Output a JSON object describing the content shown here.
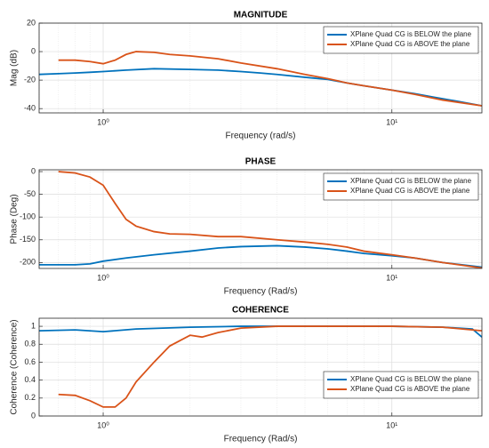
{
  "chart_data": [
    {
      "type": "line",
      "title": "MAGNITUDE",
      "xlabel": "Frequency (rad/s)",
      "ylabel": "Mag (dB)",
      "xscale": "log",
      "xlim": [
        0.6,
        20.5
      ],
      "xticks": [
        {
          "value": 1,
          "label": "10⁰"
        },
        {
          "value": 10,
          "label": "10¹"
        }
      ],
      "xminorticks": [
        0.6,
        0.7,
        0.8,
        0.9,
        2,
        3,
        4,
        5,
        6,
        7,
        8,
        9,
        20
      ],
      "ylim": [
        -43,
        20
      ],
      "yticks": [
        20,
        0,
        -20,
        -40
      ],
      "grid": true,
      "legend": "northeast",
      "series": [
        {
          "name": "XPlane Quad CG is BELOW the plane",
          "color": "#0072BD",
          "x": [
            0.6,
            0.7,
            0.8,
            0.9,
            1.0,
            1.2,
            1.5,
            2,
            2.5,
            3,
            3.5,
            4,
            5,
            6,
            7,
            8,
            10,
            12,
            14,
            17,
            20.5
          ],
          "values": [
            -16,
            -15.5,
            -15,
            -14.5,
            -14,
            -13,
            -12,
            -12.5,
            -13,
            -14,
            -15,
            -16,
            -18,
            -19.5,
            -22,
            -24,
            -27,
            -29.5,
            -32,
            -35,
            -38
          ]
        },
        {
          "name": "XPlane Quad CG is ABOVE the plane",
          "color": "#D95319",
          "x": [
            0.7,
            0.8,
            0.9,
            1.0,
            1.1,
            1.2,
            1.3,
            1.5,
            1.7,
            2,
            2.5,
            3,
            4,
            5,
            6,
            7,
            8,
            10,
            12,
            15,
            20.5
          ],
          "values": [
            -6,
            -6,
            -7,
            -8.5,
            -6,
            -2,
            0,
            -0.5,
            -2,
            -3,
            -5,
            -8,
            -12,
            -16,
            -19,
            -22,
            -24,
            -27,
            -30,
            -34,
            -38
          ]
        }
      ]
    },
    {
      "type": "line",
      "title": "PHASE",
      "xlabel": "Frequency (Rad/s)",
      "ylabel": "Phase (Deg)",
      "xscale": "log",
      "xlim": [
        0.6,
        20.5
      ],
      "xticks": [
        {
          "value": 1,
          "label": "10⁰"
        },
        {
          "value": 10,
          "label": "10¹"
        }
      ],
      "xminorticks": [
        0.6,
        0.7,
        0.8,
        0.9,
        2,
        3,
        4,
        5,
        6,
        7,
        8,
        9,
        20
      ],
      "ylim": [
        -213,
        4
      ],
      "yticks": [
        0,
        -50,
        -100,
        -150,
        -200
      ],
      "grid": true,
      "legend": "northeast",
      "series": [
        {
          "name": "XPlane Quad CG is BELOW the plane",
          "color": "#0072BD",
          "x": [
            0.6,
            0.7,
            0.8,
            0.9,
            1.0,
            1.2,
            1.5,
            2,
            2.5,
            3,
            4,
            5,
            6,
            7,
            8,
            10,
            12,
            15,
            20.5
          ],
          "values": [
            -205,
            -205,
            -205,
            -203,
            -197,
            -190,
            -183,
            -175,
            -168,
            -165,
            -163,
            -166,
            -170,
            -175,
            -180,
            -185,
            -190,
            -200,
            -210
          ]
        },
        {
          "name": "XPlane Quad CG is ABOVE the plane",
          "color": "#D95319",
          "x": [
            0.7,
            0.8,
            0.9,
            1.0,
            1.1,
            1.2,
            1.3,
            1.5,
            1.7,
            2,
            2.5,
            3,
            4,
            5,
            6,
            7,
            8,
            10,
            12,
            15,
            20.5
          ],
          "values": [
            0,
            -3,
            -12,
            -30,
            -70,
            -105,
            -120,
            -132,
            -137,
            -138,
            -143,
            -143,
            -150,
            -155,
            -160,
            -166,
            -175,
            -183,
            -190,
            -200,
            -212
          ]
        }
      ]
    },
    {
      "type": "line",
      "title": "COHERENCE",
      "xlabel": "Frequency (Rad/s)",
      "ylabel": "Coherence (Coherence)",
      "xscale": "log",
      "xlim": [
        0.6,
        20.5
      ],
      "xticks": [
        {
          "value": 1,
          "label": "10⁰"
        },
        {
          "value": 10,
          "label": "10¹"
        }
      ],
      "xminorticks": [
        0.6,
        0.7,
        0.8,
        0.9,
        2,
        3,
        4,
        5,
        6,
        7,
        8,
        9,
        20
      ],
      "ylim": [
        0,
        1.09
      ],
      "yticks": [
        0,
        0.2,
        0.4,
        0.6,
        0.8,
        1
      ],
      "grid": true,
      "legend": "east",
      "series": [
        {
          "name": "XPlane Quad CG is BELOW the plane",
          "color": "#0072BD",
          "x": [
            0.6,
            0.8,
            1.0,
            1.3,
            2,
            3,
            5,
            10,
            15,
            19,
            20.5
          ],
          "values": [
            0.95,
            0.96,
            0.94,
            0.97,
            0.99,
            1,
            1,
            1,
            0.99,
            0.97,
            0.88
          ]
        },
        {
          "name": "XPlane Quad CG is ABOVE the plane",
          "color": "#D95319",
          "x": [
            0.7,
            0.8,
            0.9,
            1.0,
            1.1,
            1.2,
            1.3,
            1.5,
            1.7,
            2,
            2.2,
            2.5,
            3,
            4,
            6,
            10,
            15,
            20.5
          ],
          "values": [
            0.24,
            0.23,
            0.17,
            0.1,
            0.1,
            0.2,
            0.38,
            0.6,
            0.78,
            0.9,
            0.88,
            0.93,
            0.98,
            1,
            1,
            1,
            0.99,
            0.95
          ]
        }
      ]
    }
  ]
}
